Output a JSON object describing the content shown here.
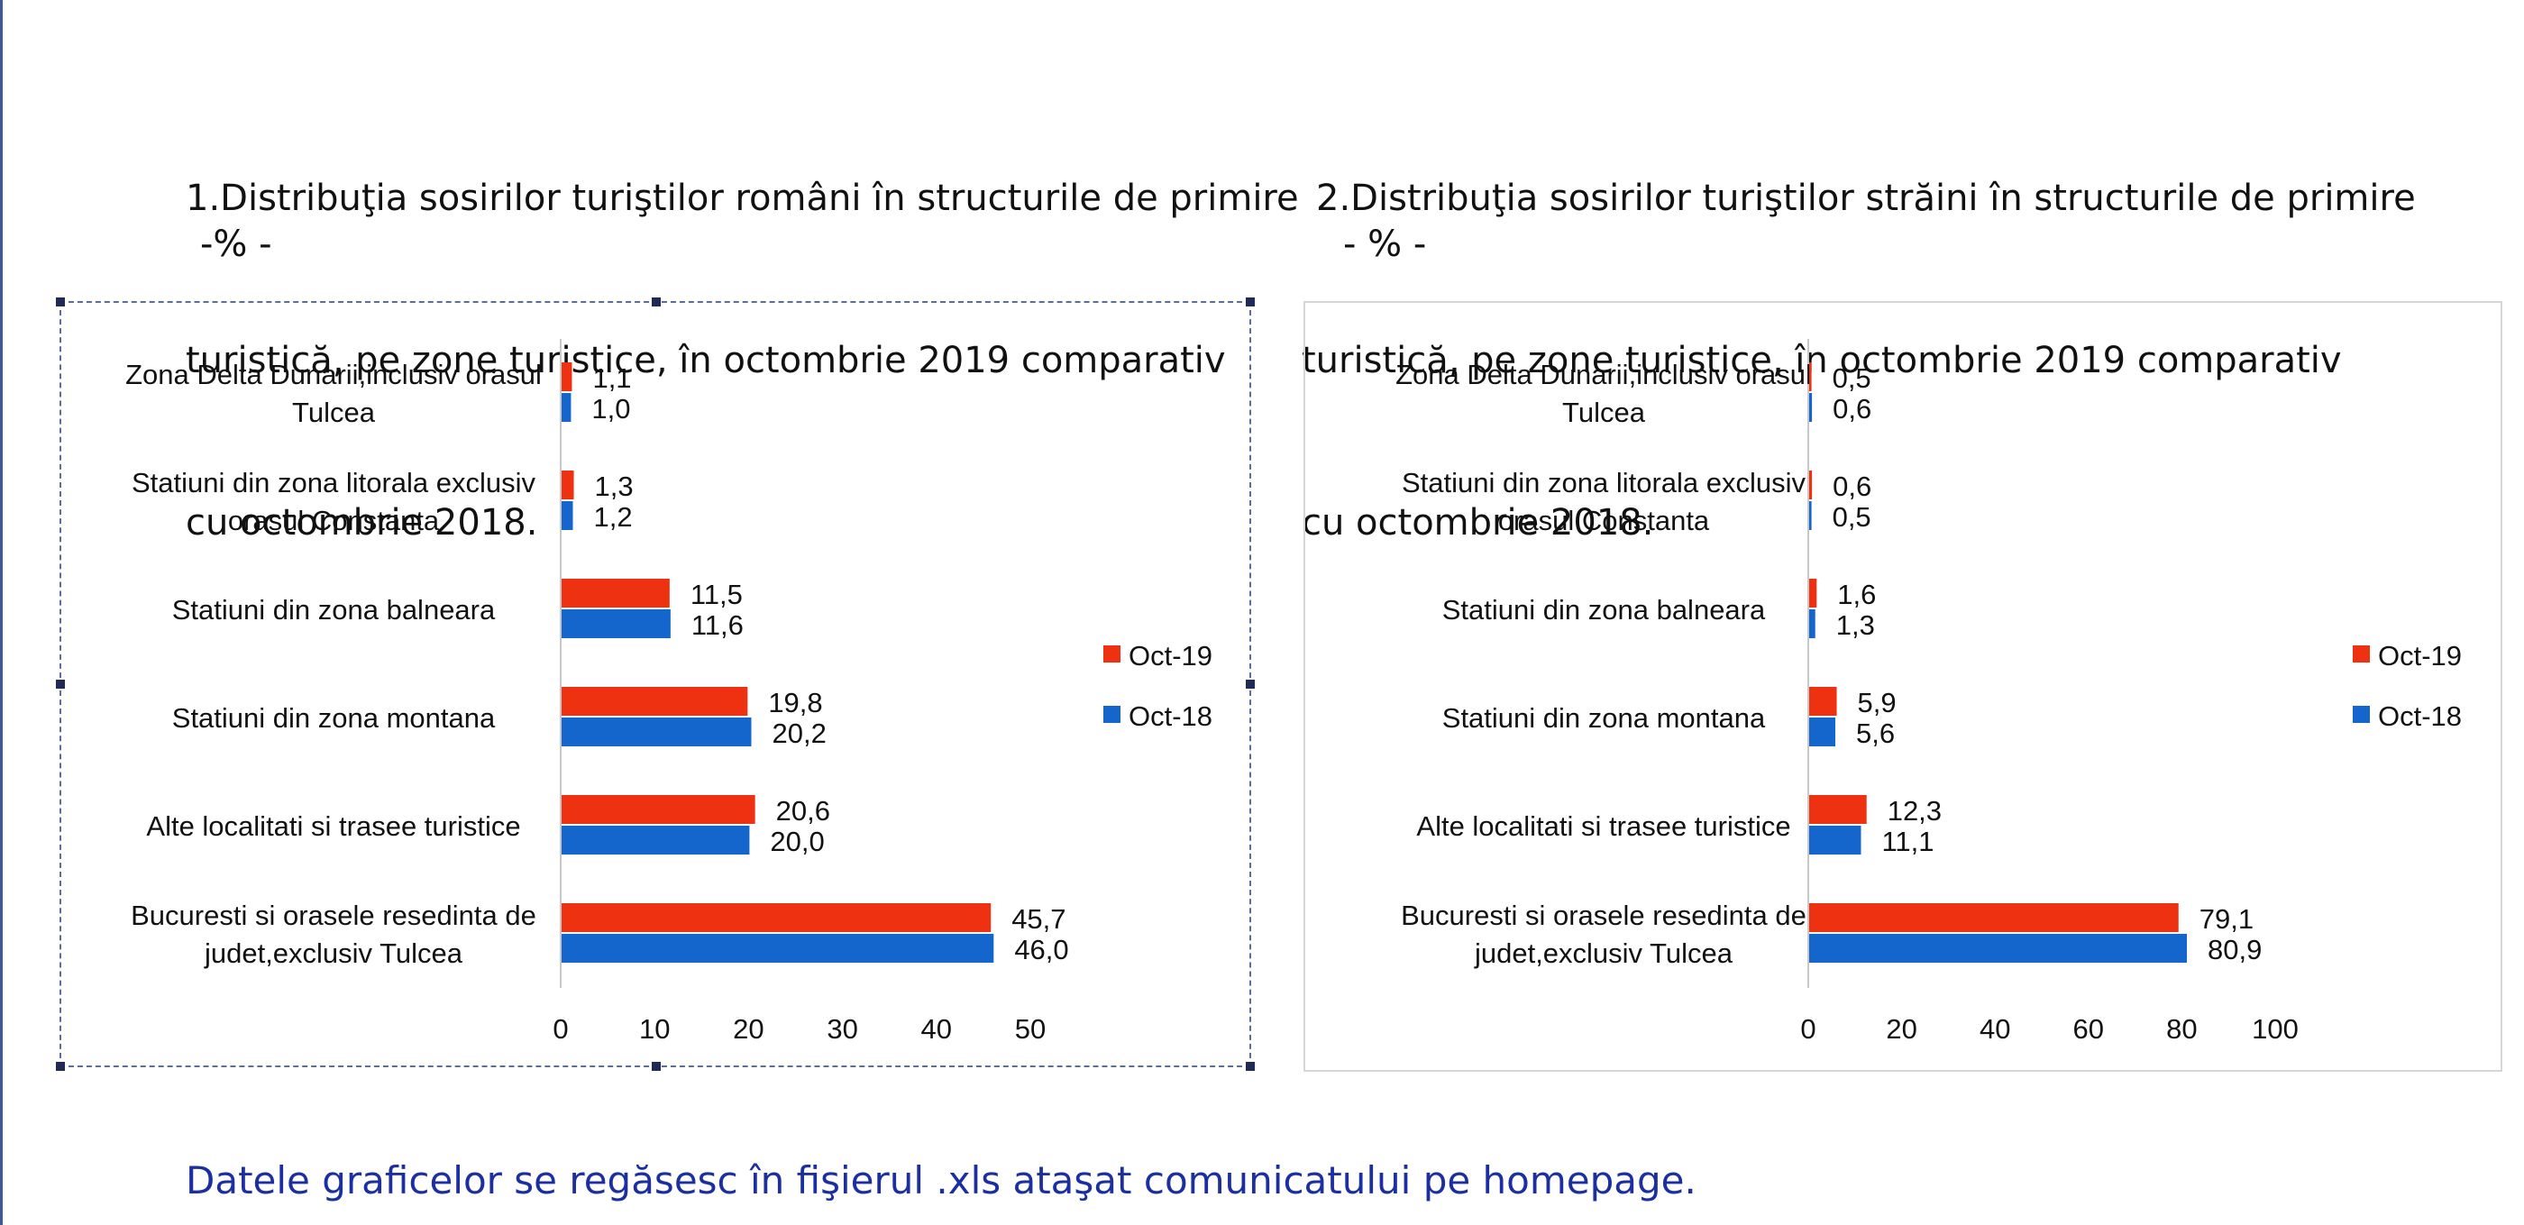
{
  "colors": {
    "oct19": "#ee3111",
    "oct18": "#1466cc",
    "footer_text": "#1b2fa0"
  },
  "charts": [
    {
      "title_lines": [
        "1.Distribuţia sosirilor turiştilor români în structurile de primire",
        "turistică, pe zone turistice, în octombrie 2019 comparativ",
        "cu octombrie 2018."
      ],
      "unit": "-% -"
    },
    {
      "title_lines": [
        "2.Distribuţia sosirilor turiştilor străini în structurile de primire",
        "turistică, pe zone turistice, în octombrie 2019 comparativ",
        "cu octombrie 2018."
      ],
      "unit": "- % -"
    }
  ],
  "footer": "Datele graficelor se regăsesc în fişierul .xls ataşat comunicatului pe homepage.",
  "chart_data": [
    {
      "type": "bar",
      "orientation": "horizontal",
      "categories": [
        [
          "Zona Delta Dunarii,inclusiv  orasul",
          "Tulcea"
        ],
        [
          "Statiuni din zona litorala exclusiv",
          "orasul Constanta"
        ],
        [
          "Statiuni din zona balneara"
        ],
        [
          "Statiuni din zona montana"
        ],
        [
          "Alte localitati si trasee turistice"
        ],
        [
          "Bucuresti si orasele resedinta de",
          "judet,exclusiv Tulcea"
        ]
      ],
      "series": [
        {
          "name": "Oct-19",
          "values": [
            1.1,
            1.3,
            11.5,
            19.8,
            20.6,
            45.7
          ],
          "labels": [
            "1,1",
            "1,3",
            "11,5",
            "19,8",
            "20,6",
            "45,7"
          ]
        },
        {
          "name": "Oct-18",
          "values": [
            1.0,
            1.2,
            11.6,
            20.2,
            20.0,
            46.0
          ],
          "labels": [
            "1,0",
            "1,2",
            "11,6",
            "20,2",
            "20,0",
            "46,0"
          ]
        }
      ],
      "xlim": [
        0,
        50
      ],
      "xticks": [
        0,
        10,
        20,
        30,
        40,
        50
      ],
      "legend": "right",
      "grid": false
    },
    {
      "type": "bar",
      "orientation": "horizontal",
      "categories": [
        [
          "Zona Delta Dunarii,inclusiv  orasul",
          "Tulcea"
        ],
        [
          "Statiuni din zona litorala exclusiv",
          "orasul Constanta"
        ],
        [
          "Statiuni din zona balneara"
        ],
        [
          "Statiuni din zona montana"
        ],
        [
          "Alte localitati si trasee turistice"
        ],
        [
          "Bucuresti si orasele resedinta de",
          "judet,exclusiv Tulcea"
        ]
      ],
      "series": [
        {
          "name": "Oct-19",
          "values": [
            0.5,
            0.6,
            1.6,
            5.9,
            12.3,
            79.1
          ],
          "labels": [
            "0,5",
            "0,6",
            "1,6",
            "5,9",
            "12,3",
            "79,1"
          ]
        },
        {
          "name": "Oct-18",
          "values": [
            0.6,
            0.5,
            1.3,
            5.6,
            11.1,
            80.9
          ],
          "labels": [
            "0,6",
            "0,5",
            "1,3",
            "5,6",
            "11,1",
            "80,9"
          ]
        }
      ],
      "xlim": [
        0,
        100
      ],
      "xticks": [
        0,
        20,
        40,
        60,
        80,
        100
      ],
      "legend": "right",
      "grid": false
    }
  ]
}
